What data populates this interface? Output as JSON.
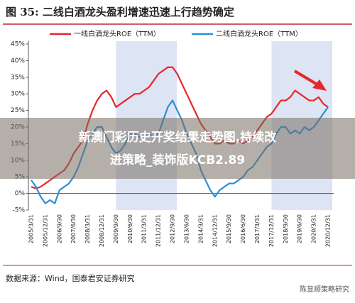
{
  "chart_data": {
    "type": "line",
    "title": "图 35:  二线白酒龙头盈利增速迅速上行趋势确定",
    "categories": [
      "2005/3/31",
      null,
      null,
      "2005/12/31",
      null,
      null,
      "2006/9/30",
      null,
      null,
      "2007/6/30",
      null,
      null,
      "2008/3/31",
      null,
      null,
      "2008/12/31",
      null,
      null,
      "2009/9/30",
      null,
      null,
      "2010/6/30",
      null,
      null,
      "2011/3/31",
      null,
      null,
      "2011/12/31",
      null,
      null,
      "2012/9/30",
      null,
      null,
      "2013/6/30",
      null,
      null,
      "2014/3/31",
      null,
      null,
      "2014/12/31",
      null,
      null,
      "2015/9/30",
      null,
      null,
      "2016/6/30",
      null,
      null,
      "2017/3/31",
      null,
      null,
      "2017/12/31",
      null,
      null,
      "2018/9/30",
      null,
      null,
      "2019/6/30",
      null,
      null,
      "2020/3/31",
      null,
      null,
      "2020/12/31"
    ],
    "series": [
      {
        "name": "一线白酒龙头ROE（TTM）",
        "color": "#e8262a",
        "values": [
          2,
          1.5,
          2,
          3,
          4,
          5,
          6,
          7,
          9,
          12,
          14,
          16,
          21,
          25,
          28,
          30,
          31,
          29,
          26,
          27,
          28,
          29,
          30,
          30,
          31,
          32,
          34,
          36,
          37,
          38,
          38,
          36,
          33,
          30,
          27,
          24,
          21,
          19,
          17,
          15,
          15,
          16,
          15,
          15,
          16,
          15,
          16,
          17,
          19,
          21,
          23,
          24,
          26,
          28,
          28,
          29,
          31,
          30,
          29,
          28,
          28,
          29,
          27,
          26
        ]
      },
      {
        "name": "二线白酒龙头ROE（TTM）",
        "color": "#2b8fd6",
        "values": [
          4,
          2,
          -1,
          -3,
          -2,
          -3,
          1,
          2,
          3,
          5,
          8,
          12,
          16,
          18,
          20,
          20,
          17,
          14,
          12,
          13,
          15,
          18,
          18,
          17,
          17,
          18,
          17,
          18,
          22,
          26,
          28,
          25,
          22,
          18,
          15,
          12,
          7,
          4,
          1,
          -1,
          1,
          2,
          3,
          3,
          4,
          5,
          7,
          8,
          10,
          12,
          14,
          15,
          18,
          20,
          20,
          18,
          19,
          18,
          20,
          19,
          20,
          22,
          24,
          26
        ]
      }
    ],
    "ylim": [
      -5,
      45
    ],
    "yticks": [
      {
        "value": -5,
        "label": "-5%"
      },
      {
        "value": 0,
        "label": "0%"
      },
      {
        "value": 5,
        "label": "5%"
      },
      {
        "value": 10,
        "label": "10%"
      },
      {
        "value": 15,
        "label": "15%"
      },
      {
        "value": 20,
        "label": "20%"
      },
      {
        "value": 25,
        "label": "25%"
      },
      {
        "value": 30,
        "label": "30%"
      },
      {
        "value": 35,
        "label": "35%"
      },
      {
        "value": 40,
        "label": "40%"
      },
      {
        "value": 45,
        "label": "45%"
      }
    ],
    "highlight_ranges": [
      [
        "2009/9/30",
        "2012/9/30"
      ],
      [
        "2017/12/31",
        "2020/12/31"
      ]
    ],
    "highlight_color": "#dde4f3",
    "source": "数据来源：Wind，国泰君安证券研究"
  },
  "watermark": "陈显顺策略研究",
  "overlay": [
    "新澳门彩历史开奖结果走势图,持续改",
    "进策略_装饰版KCB2.89"
  ]
}
